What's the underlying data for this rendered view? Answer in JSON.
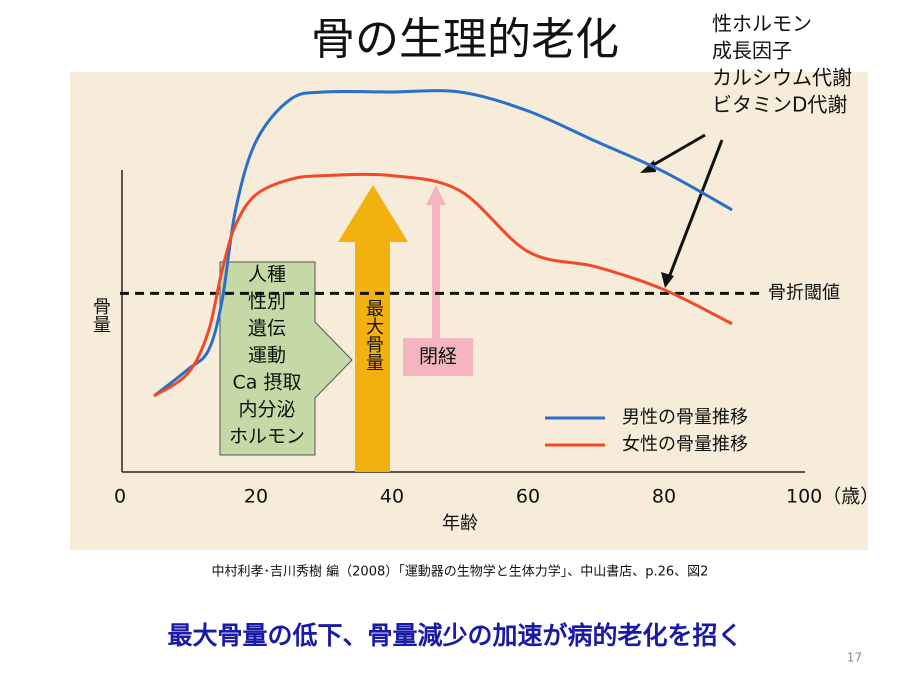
{
  "chart_data": {
    "type": "line",
    "title": "骨の生理的老化",
    "xlabel": "年齢",
    "ylabel": "骨量",
    "x": [
      5,
      10,
      13,
      15,
      17,
      20,
      25,
      30,
      40,
      50,
      60,
      70,
      80,
      90
    ],
    "xlim": [
      0,
      100
    ],
    "xticks": [
      0,
      20,
      40,
      60,
      80,
      {
        "value": 100,
        "label": "100（歳）"
      }
    ],
    "ylim": [
      0,
      100
    ],
    "series": [
      {
        "name": "男性の骨量推移",
        "color": "#2a6fc9",
        "values": [
          20,
          27,
          32,
          45,
          69,
          87,
          98,
          100,
          100,
          100,
          95,
          87,
          79,
          69
        ]
      },
      {
        "name": "女性の骨量推移",
        "color": "#f04a28",
        "values": [
          20,
          26,
          37,
          53,
          65,
          73,
          77,
          78,
          78,
          74,
          58,
          54,
          48,
          39
        ]
      }
    ],
    "threshold": {
      "value": 47,
      "label": "骨折閾値"
    },
    "factors": [
      "人種",
      "性別",
      "遺伝",
      "運動",
      "Ca 摂取",
      "内分泌",
      "ホルモン"
    ],
    "peak_label": "最大骨量",
    "menopause_label": "閉経",
    "hormone_notes": [
      "性ホルモン",
      "成長因子",
      "カルシウム代謝",
      "ビタミンD代謝"
    ],
    "citation": "中村利孝･吉川秀樹 編（2008）「運動器の生物学と生体力学」、中山書店、p.26、図2",
    "message": "最大骨量の低下、骨量減少の加速が病的老化を招く",
    "page_number": "17"
  }
}
